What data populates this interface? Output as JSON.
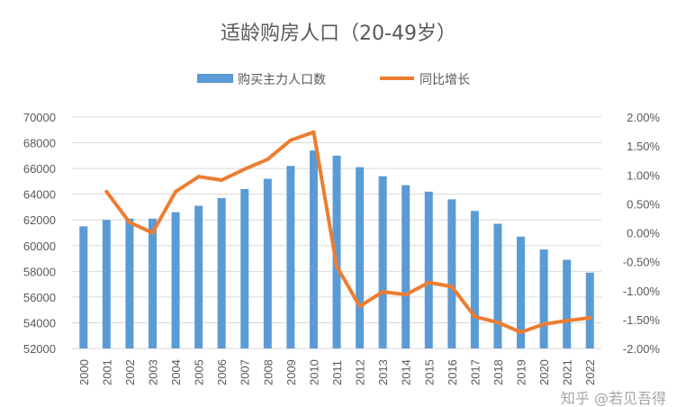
{
  "chart_data": {
    "type": "bar+line",
    "title": "适龄购房人口（20-49岁）",
    "categories": [
      "2000",
      "2001",
      "2002",
      "2003",
      "2004",
      "2005",
      "2006",
      "2007",
      "2008",
      "2009",
      "2010",
      "2011",
      "2012",
      "2013",
      "2014",
      "2015",
      "2016",
      "2017",
      "2018",
      "2019",
      "2020",
      "2021",
      "2022"
    ],
    "series": [
      {
        "name": "购买主力人口数",
        "type": "bar",
        "axis": "left",
        "color": "#5B9BD5",
        "values": [
          61500,
          62000,
          62100,
          62100,
          62600,
          63100,
          63700,
          64400,
          65200,
          66200,
          67400,
          67000,
          66100,
          65400,
          64700,
          64200,
          63600,
          62700,
          61700,
          60700,
          59700,
          58900,
          57900
        ]
      },
      {
        "name": "同比增长",
        "type": "line",
        "axis": "right",
        "color": "#ED7D31",
        "values": [
          null,
          0.71,
          0.18,
          0.0,
          0.71,
          0.97,
          0.91,
          1.1,
          1.27,
          1.6,
          1.74,
          -0.58,
          -1.27,
          -1.02,
          -1.07,
          -0.86,
          -0.93,
          -1.45,
          -1.55,
          -1.72,
          -1.58,
          -1.52,
          -1.47
        ]
      }
    ],
    "left_axis": {
      "ylim": [
        52000,
        70000
      ],
      "ticks": [
        "52000",
        "54000",
        "56000",
        "58000",
        "60000",
        "62000",
        "64000",
        "66000",
        "68000",
        "70000"
      ]
    },
    "right_axis": {
      "ylim": [
        -2.0,
        2.0
      ],
      "unit": "%",
      "ticks": [
        "-2.00%",
        "-1.50%",
        "-1.00%",
        "-0.50%",
        "0.00%",
        "0.50%",
        "1.00%",
        "1.50%",
        "2.00%"
      ]
    },
    "grid": true,
    "legend_position": "top-center",
    "watermark": "知乎 @若见吾得"
  }
}
